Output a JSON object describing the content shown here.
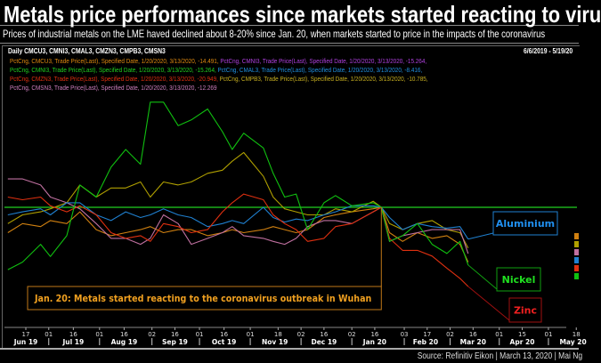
{
  "title": "Metals price performances since markets started reacting to viru",
  "subtitle": "Prices of industrial metals on the LME haved declined about 8-20% since Jan. 20, when markets started to price in the impacts of the coronavirus",
  "chart_header": {
    "left": "Daily CMCU3, CMNI3, CMAL3, CMZN3, CMPB3, CMSN3",
    "right": "6/6/2019 - 5/19/20"
  },
  "legend_lines": [
    [
      {
        "text": "PctCng, CMCU3, Trade Price(Last), Specified Date, 1/20/2020, 3/13/2020, -14.491, ",
        "color": "#e08a10"
      },
      {
        "text": "PctCng, CMNI3, Trade Price(Last), Specified Date, 1/20/2020, 3/13/2020, -15.264,",
        "color": "#b040e0"
      }
    ],
    [
      {
        "text": "PctCng, CMNI3, Trade Price(Last), Specified Date, 1/20/2020, 3/13/2020, -15.264, ",
        "color": "#20d020"
      },
      {
        "text": "PctCng, CMAL3, Trade Price(Last), Specified Date, 1/20/2020, 3/13/2020, -8.416,",
        "color": "#2090e0"
      }
    ],
    [
      {
        "text": "PctCng, CMZN3, Trade Price(Last), Specified Date, 1/20/2020, 3/13/2020, -20.949, ",
        "color": "#e03010"
      },
      {
        "text": "PctCng, CMPB3, Trade Price(Last), Specified Date, 1/20/2020, 3/13/2020, -10.785,",
        "color": "#c8b020"
      }
    ],
    [
      {
        "text": "PctCng, CMSN3, Trade Price(Last), Specified Date, 1/20/2020, 3/13/2020, -12.269",
        "color": "#d080c0"
      }
    ]
  ],
  "annotations": {
    "event": "Jan. 20: Metals started reacting to the coronavirus outbreak in Wuhan",
    "aluminium": "Aluminium",
    "nickel": "Nickel",
    "zinc": "Zinc"
  },
  "source": "Source: Refinitiv Eikon | March 13, 2020 | Mai Ng",
  "chart_data": {
    "type": "line",
    "ylabel": "",
    "baseline": 0,
    "event_date": "2020-01-20",
    "x": [
      "2019-06-06",
      "2019-06-15",
      "2019-06-26",
      "2019-07-02",
      "2019-07-12",
      "2019-07-20",
      "2019-07-30",
      "2019-08-08",
      "2019-08-17",
      "2019-08-26",
      "2019-09-01",
      "2019-09-09",
      "2019-09-18",
      "2019-09-26",
      "2019-10-06",
      "2019-10-15",
      "2019-10-21",
      "2019-10-28",
      "2019-11-09",
      "2019-11-15",
      "2019-11-22",
      "2019-11-29",
      "2019-12-06",
      "2019-12-16",
      "2019-12-23",
      "2020-01-02",
      "2020-01-15",
      "2020-01-20",
      "2020-01-25",
      "2020-02-02",
      "2020-02-11",
      "2020-02-20",
      "2020-02-29",
      "2020-03-08",
      "2020-03-13"
    ],
    "series": [
      {
        "name": "CMCU3",
        "color": "#d08010",
        "values": [
          -6.7,
          -4.3,
          -5.1,
          -3.5,
          -4.3,
          -1.2,
          -5.9,
          -7.5,
          -6.7,
          -5.9,
          -5.1,
          -6.7,
          -5.9,
          -5.9,
          -7.5,
          -6.7,
          -5.9,
          -6.7,
          -5.9,
          -5.1,
          -5.9,
          -6.7,
          -5.9,
          -2.7,
          -2.0,
          -1.2,
          -0.4,
          0,
          -6.7,
          -9.0,
          -6.7,
          -8.2,
          -7.5,
          -9.8,
          -14.491
        ]
      },
      {
        "name": "CMPB3",
        "color": "#b0a000",
        "values": [
          -4.3,
          -2.0,
          -1.2,
          -0.4,
          1.2,
          5.9,
          2.7,
          5.1,
          5.1,
          6.7,
          2.7,
          6.7,
          5.9,
          6.7,
          9.0,
          9.8,
          12.2,
          14.5,
          8.2,
          2.7,
          -0.4,
          -1.2,
          -2.0,
          -2.0,
          -0.4,
          -1.2,
          1.6,
          0,
          -4.3,
          -5.9,
          -4.3,
          -3.5,
          -5.9,
          -6.7,
          -10.785
        ]
      },
      {
        "name": "CMSN3",
        "color": "#c070a0",
        "values": [
          7.5,
          7.5,
          5.9,
          2.7,
          1.2,
          -0.4,
          -4.3,
          -8.2,
          -8.2,
          -9.8,
          -8.2,
          -2.0,
          -4.3,
          -9.8,
          -8.2,
          -6.7,
          -5.1,
          -7.5,
          -8.2,
          -9.0,
          -9.8,
          -8.2,
          -5.1,
          -3.5,
          -3.5,
          -4.3,
          -1.2,
          0,
          -9.0,
          -7.5,
          -6.7,
          -5.9,
          -5.9,
          -5.9,
          -12.269
        ]
      },
      {
        "name": "CMAL3",
        "color": "#1f80d0",
        "values": [
          -2.0,
          -1.2,
          -0.4,
          -2.0,
          1.2,
          1.2,
          -2.0,
          -3.5,
          -1.2,
          -2.7,
          -2.0,
          -0.4,
          -2.0,
          -2.7,
          -5.1,
          -4.3,
          -3.5,
          -4.3,
          0,
          -2.7,
          -3.9,
          -3.1,
          -3.5,
          -2.0,
          -1.2,
          0.4,
          0.4,
          0,
          -2.7,
          -5.9,
          -4.3,
          -5.1,
          -5.5,
          -5.1,
          -8.416
        ]
      },
      {
        "name": "CMZN3",
        "color": "#e03010",
        "values": [
          2.7,
          2.0,
          2.7,
          0.4,
          -1.2,
          0.4,
          -2.0,
          -6.7,
          -8.2,
          -7.5,
          -9.0,
          -4.3,
          -5.1,
          -6.7,
          -5.9,
          -1.2,
          1.2,
          3.5,
          2.0,
          -2.0,
          -4.3,
          -5.9,
          -9.0,
          -8.2,
          -5.1,
          -4.3,
          -1.2,
          0,
          -8.2,
          -11.4,
          -11.4,
          -12.9,
          -16.1,
          -18.8,
          -20.949
        ]
      },
      {
        "name": "CMNI3",
        "color": "#10c010",
        "values": [
          -16.5,
          -14.5,
          -9.8,
          -13.0,
          -7.5,
          5.9,
          2.7,
          10.6,
          15.3,
          11.4,
          27.8,
          27.8,
          21.6,
          23.1,
          26.0,
          20.0,
          15.3,
          19.6,
          15.7,
          9.0,
          2.7,
          3.5,
          -5.9,
          1.2,
          3.1,
          0.4,
          1.2,
          0,
          -9.0,
          -7.5,
          -4.3,
          -9.8,
          -12.2,
          -9.0,
          -15.264
        ]
      }
    ],
    "x_ticks": [
      {
        "date": "2019-06-17",
        "label": "17"
      },
      {
        "date": "2019-07-01",
        "label": "01"
      },
      {
        "date": "2019-07-16",
        "label": "16"
      },
      {
        "date": "2019-08-01",
        "label": "01"
      },
      {
        "date": "2019-08-16",
        "label": "16"
      },
      {
        "date": "2019-09-02",
        "label": "02"
      },
      {
        "date": "2019-09-16",
        "label": "16"
      },
      {
        "date": "2019-10-01",
        "label": "01"
      },
      {
        "date": "2019-10-16",
        "label": "16"
      },
      {
        "date": "2019-11-01",
        "label": "01"
      },
      {
        "date": "2019-11-18",
        "label": "18"
      },
      {
        "date": "2019-12-02",
        "label": "02"
      },
      {
        "date": "2019-12-16",
        "label": "16"
      },
      {
        "date": "2020-01-02",
        "label": "02"
      },
      {
        "date": "2020-01-16",
        "label": "16"
      },
      {
        "date": "2020-02-03",
        "label": "03"
      },
      {
        "date": "2020-02-17",
        "label": "17"
      },
      {
        "date": "2020-03-02",
        "label": "02"
      },
      {
        "date": "2020-03-16",
        "label": "16"
      },
      {
        "date": "2020-04-01",
        "label": "01"
      },
      {
        "date": "2020-04-15",
        "label": "15"
      },
      {
        "date": "2020-05-01",
        "label": "01"
      },
      {
        "date": "2020-05-18",
        "label": "18"
      }
    ],
    "x_months": [
      {
        "date": "2019-06-17",
        "label": "Jun 19"
      },
      {
        "date": "2019-07-16",
        "label": "Jul 19"
      },
      {
        "date": "2019-08-16",
        "label": "Aug 19"
      },
      {
        "date": "2019-09-16",
        "label": "Sep 19"
      },
      {
        "date": "2019-10-16",
        "label": "Oct 19"
      },
      {
        "date": "2019-11-16",
        "label": "Nov 19"
      },
      {
        "date": "2019-12-16",
        "label": "Dec 19"
      },
      {
        "date": "2020-01-16",
        "label": "Jan 20"
      },
      {
        "date": "2020-02-16",
        "label": "Feb 20"
      },
      {
        "date": "2020-03-16",
        "label": "Mar 20"
      },
      {
        "date": "2020-04-15",
        "label": "Apr 20"
      },
      {
        "date": "2020-05-16",
        "label": "May 20"
      }
    ]
  }
}
